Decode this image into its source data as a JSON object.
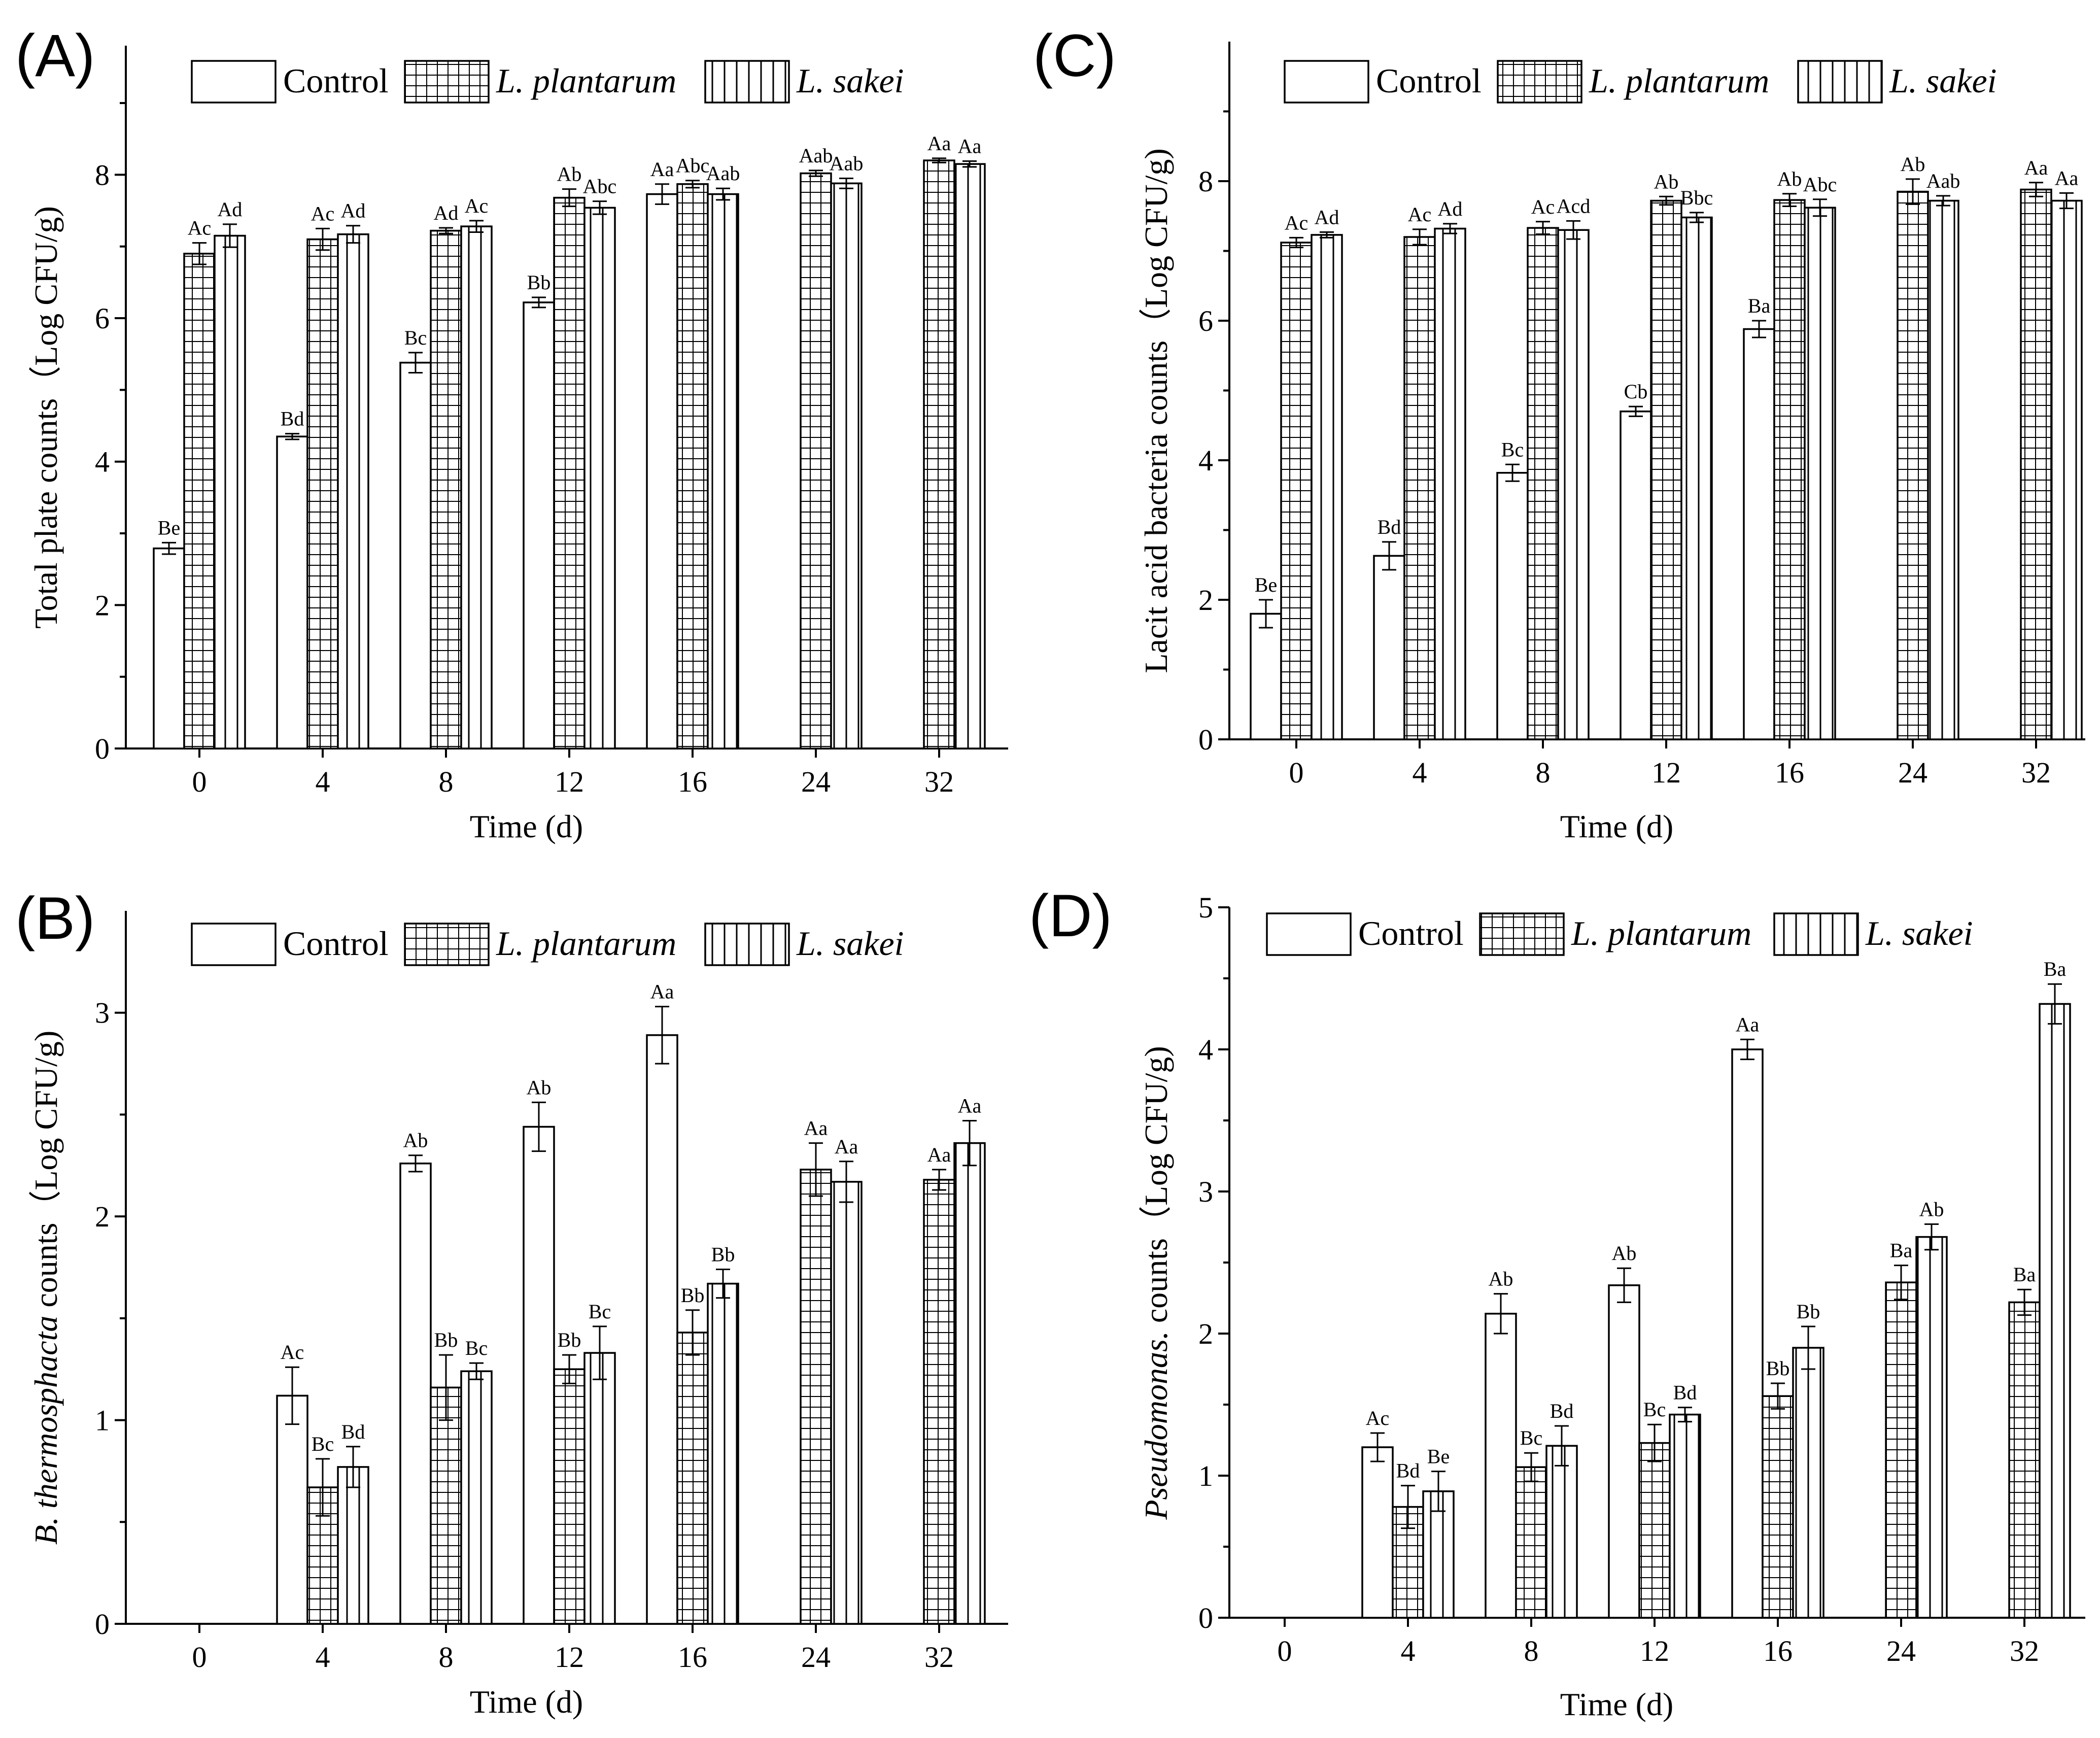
{
  "legend": [
    {
      "label": "Control",
      "italic": false,
      "pattern": "none"
    },
    {
      "label": "L. plantarum",
      "italic": true,
      "pattern": "grid"
    },
    {
      "label": "L. sakei",
      "italic": true,
      "pattern": "vlines"
    }
  ],
  "chart_data": [
    {
      "id": "A",
      "panel_label": "(A)",
      "type": "bar",
      "title": "",
      "xlabel": "Time (d)",
      "ylabel": "Total plate counts（Log CFU/g)",
      "ylim": [
        0,
        9.8
      ],
      "yticks": [
        0,
        2,
        4,
        6,
        8
      ],
      "yminor": [
        1,
        3,
        5,
        7,
        9
      ],
      "categories": [
        "0",
        "4",
        "8",
        "12",
        "16",
        "24",
        "32"
      ],
      "series": [
        {
          "name": "Control",
          "values": [
            2.79,
            4.35,
            5.38,
            6.22,
            7.73,
            null,
            null
          ],
          "errors": [
            0.08,
            0.04,
            0.14,
            0.07,
            0.14,
            null,
            null
          ],
          "letters": [
            "Be",
            "Bd",
            "Bc",
            "Bb",
            "Aa",
            "",
            ""
          ]
        },
        {
          "name": "L. plantarum",
          "values": [
            6.9,
            7.1,
            7.22,
            7.68,
            7.87,
            8.02,
            8.2
          ],
          "errors": [
            0.15,
            0.15,
            0.04,
            0.12,
            0.05,
            0.04,
            0.03
          ],
          "letters": [
            "Ac",
            "Ac",
            "Ad",
            "Ab",
            "Abc",
            "Aab",
            "Aa"
          ]
        },
        {
          "name": "L. sakei",
          "values": [
            7.15,
            7.17,
            7.28,
            7.54,
            7.73,
            7.88,
            8.15
          ],
          "errors": [
            0.16,
            0.12,
            0.08,
            0.09,
            0.08,
            0.07,
            0.04
          ],
          "letters": [
            "Ad",
            "Ad",
            "Ac",
            "Abc",
            "Aab",
            "Aab",
            "Aa"
          ]
        }
      ]
    },
    {
      "id": "B",
      "panel_label": "(B)",
      "type": "bar",
      "title": "",
      "xlabel": "Time (d)",
      "ylabel_italic": "B. thermosphacta",
      "ylabel_rest": " counts（Log CFU/g)",
      "ylim": [
        0,
        3.5
      ],
      "yticks": [
        0,
        1,
        2,
        3
      ],
      "yminor": [
        0.5,
        1.5,
        2.5
      ],
      "categories": [
        "0",
        "4",
        "8",
        "12",
        "16",
        "24",
        "32"
      ],
      "series": [
        {
          "name": "Control",
          "values": [
            null,
            1.12,
            2.26,
            2.44,
            2.89,
            null,
            null
          ],
          "errors": [
            null,
            0.14,
            0.04,
            0.12,
            0.14,
            null,
            null
          ],
          "letters": [
            "",
            "Ac",
            "Ab",
            "Ab",
            "Aa",
            "",
            ""
          ]
        },
        {
          "name": "L. plantarum",
          "values": [
            null,
            0.67,
            1.16,
            1.25,
            1.43,
            2.23,
            2.18
          ],
          "errors": [
            null,
            0.14,
            0.16,
            0.07,
            0.11,
            0.13,
            0.05
          ],
          "letters": [
            "",
            "Bc",
            "Bb",
            "Bb",
            "Bb",
            "Aa",
            "Aa"
          ]
        },
        {
          "name": "L. sakei",
          "values": [
            null,
            0.77,
            1.24,
            1.33,
            1.67,
            2.17,
            2.36
          ],
          "errors": [
            null,
            0.1,
            0.04,
            0.13,
            0.07,
            0.1,
            0.11
          ],
          "letters": [
            "",
            "Bd",
            "Bc",
            "Bc",
            "Bb",
            "Aa",
            "Aa"
          ]
        }
      ]
    },
    {
      "id": "C",
      "panel_label": "(C)",
      "type": "bar",
      "title": "",
      "xlabel": "Time (d)",
      "ylabel": "Lacit acid bacteria counts（Log CFU/g)",
      "ylim": [
        0,
        10
      ],
      "yticks": [
        0,
        2,
        4,
        6,
        8
      ],
      "yminor": [
        1,
        3,
        5,
        7,
        9
      ],
      "categories": [
        "0",
        "4",
        "8",
        "12",
        "16",
        "24",
        "32"
      ],
      "series": [
        {
          "name": "Control",
          "values": [
            1.8,
            2.63,
            3.82,
            4.7,
            5.88,
            null,
            null
          ],
          "errors": [
            0.2,
            0.2,
            0.12,
            0.07,
            0.12,
            null,
            null
          ],
          "letters": [
            "Be",
            "Bd",
            "Bc",
            "Cb",
            "Ba",
            "",
            ""
          ]
        },
        {
          "name": "L. plantarum",
          "values": [
            7.12,
            7.2,
            7.33,
            7.72,
            7.73,
            7.85,
            7.88
          ],
          "errors": [
            0.07,
            0.11,
            0.09,
            0.06,
            0.09,
            0.18,
            0.1
          ],
          "letters": [
            "Ac",
            "Ac",
            "Ac",
            "Ab",
            "Ab",
            "Ab",
            "Aa"
          ]
        },
        {
          "name": "L. sakei",
          "values": [
            7.23,
            7.32,
            7.3,
            7.48,
            7.62,
            7.72,
            7.72
          ],
          "errors": [
            0.04,
            0.07,
            0.13,
            0.07,
            0.12,
            0.07,
            0.11
          ],
          "letters": [
            "Ad",
            "Ad",
            "Acd",
            "Bbc",
            "Abc",
            "Aab",
            "Aa"
          ]
        }
      ]
    },
    {
      "id": "D",
      "panel_label": "(D)",
      "type": "bar",
      "title": "",
      "xlabel": "Time (d)",
      "ylabel_italic": "Pseudomonas.",
      "ylabel_rest": " counts（Log CFU/g)",
      "ylim": [
        0,
        5
      ],
      "yticks": [
        0,
        1,
        2,
        3,
        4,
        5
      ],
      "yminor": [
        0.5,
        1.5,
        2.5,
        3.5,
        4.5
      ],
      "categories": [
        "0",
        "4",
        "8",
        "12",
        "16",
        "24",
        "32"
      ],
      "series": [
        {
          "name": "Control",
          "values": [
            null,
            1.2,
            2.14,
            2.34,
            4.0,
            null,
            null
          ],
          "errors": [
            null,
            0.1,
            0.14,
            0.12,
            0.07,
            null,
            null
          ],
          "letters": [
            "",
            "Ac",
            "Ab",
            "Ab",
            "Aa",
            "",
            ""
          ]
        },
        {
          "name": "L. plantarum",
          "values": [
            null,
            0.78,
            1.06,
            1.23,
            1.56,
            2.36,
            2.22
          ],
          "errors": [
            null,
            0.15,
            0.1,
            0.13,
            0.09,
            0.12,
            0.09
          ],
          "letters": [
            "",
            "Bd",
            "Bc",
            "Bc",
            "Bb",
            "Ba",
            "Ba"
          ]
        },
        {
          "name": "L. sakei",
          "values": [
            null,
            0.89,
            1.21,
            1.43,
            1.9,
            2.68,
            4.32
          ],
          "errors": [
            null,
            0.14,
            0.14,
            0.05,
            0.15,
            0.09,
            0.14
          ],
          "letters": [
            "",
            "Be",
            "Bd",
            "Bd",
            "Bb",
            "Ab",
            "Ba"
          ]
        }
      ]
    }
  ]
}
